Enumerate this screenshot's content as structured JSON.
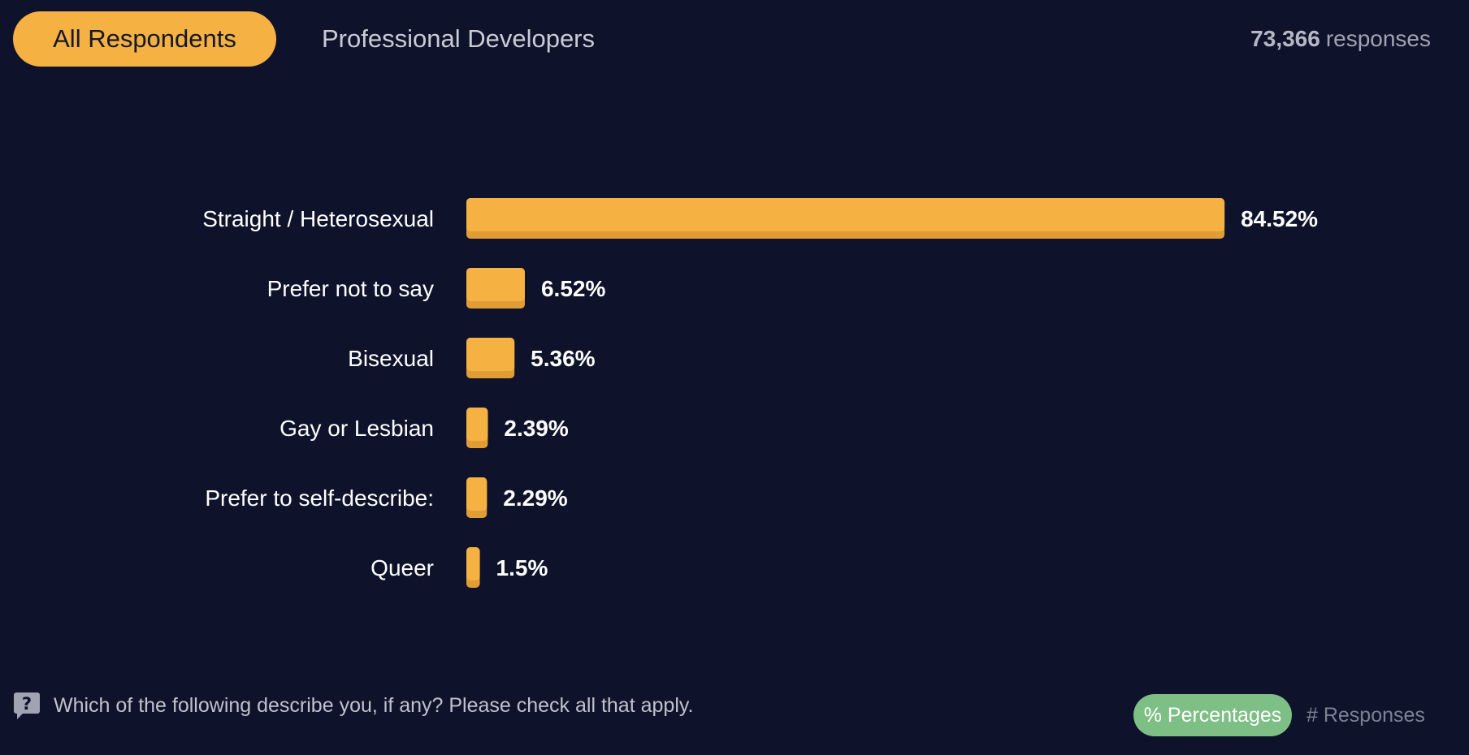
{
  "tabs": {
    "all_respondents": "All Respondents",
    "professional_developers": "Professional Developers"
  },
  "responses": {
    "count": "73,366",
    "label": "responses"
  },
  "chart_data": {
    "type": "bar",
    "orientation": "horizontal",
    "title": "",
    "xlabel": "",
    "ylabel": "",
    "xlim": [
      0,
      100
    ],
    "unit": "%",
    "categories": [
      "Straight / Heterosexual",
      "Prefer not to say",
      "Bisexual",
      "Gay or Lesbian",
      "Prefer to self-describe:",
      "Queer"
    ],
    "values": [
      84.52,
      6.52,
      5.36,
      2.39,
      2.29,
      1.5
    ],
    "value_labels": [
      "84.52%",
      "6.52%",
      "5.36%",
      "2.39%",
      "2.29%",
      "1.5%"
    ],
    "bar_color": "#f5b142",
    "bar_shadow_color": "#e09c35"
  },
  "footer": {
    "question": "Which of the following describe you, if any? Please check all that apply.",
    "toggle_percentages": "% Percentages",
    "toggle_responses": "# Responses"
  },
  "colors": {
    "background": "#0e132b",
    "accent": "#f5b142",
    "toggle_active": "#7ebf86"
  }
}
